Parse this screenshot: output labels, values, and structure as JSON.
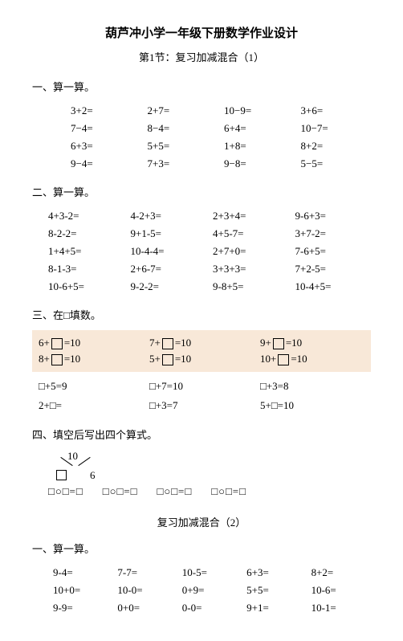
{
  "title": "葫芦冲小学一年级下册数学作业设计",
  "subtitle": "第1节：复习加减混合（1）",
  "s1": {
    "head": "一、算一算。",
    "rows": [
      [
        "3+2=",
        "2+7=",
        "10−9=",
        "3+6="
      ],
      [
        "7−4=",
        "8−4=",
        "6+4=",
        "10−7="
      ],
      [
        "6+3=",
        "5+5=",
        "1+8=",
        "8+2="
      ],
      [
        "9−4=",
        "7+3=",
        "9−8=",
        "5−5="
      ]
    ]
  },
  "s2": {
    "head": "二、算一算。",
    "rows": [
      [
        "4+3-2=",
        "4-2+3=",
        "2+3+4=",
        "9-6+3="
      ],
      [
        "8-2-2=",
        "9+1-5=",
        "4+5-7=",
        "3+7-2="
      ],
      [
        "1+4+5=",
        "10-4-4=",
        "2+7+0=",
        "7-6+5="
      ],
      [
        "8-1-3=",
        "2+6-7=",
        "3+3+3=",
        "7+2-5="
      ],
      [
        "10-6+5=",
        "9-2-2=",
        "9-8+5=",
        "10-4+5="
      ]
    ]
  },
  "s3": {
    "head": "三、在□填数。",
    "band": [
      {
        "a": "6+",
        "b": "=10",
        "c": "7+",
        "d": "=10",
        "e": "9+",
        "f": "=10"
      },
      {
        "a": "8+",
        "b": "=10",
        "c": "5+",
        "d": "=10",
        "e": "10+",
        "f": "=10"
      }
    ],
    "rows": [
      [
        "□+5=9",
        "□+7=10",
        "□+3=8"
      ],
      [
        "2+□=",
        "□+3=7",
        "5+□=10"
      ]
    ]
  },
  "s4": {
    "head": "四、填空后写出四个算式。",
    "ten": "10",
    "six": "6",
    "eqs": [
      "□○□=□",
      "□○□=□",
      "□○□=□",
      "□○□=□"
    ]
  },
  "subtitle2": "复习加减混合（2）",
  "s5": {
    "head": "一、算一算。",
    "rows": [
      [
        "9-4=",
        "7-7=",
        "10-5=",
        "6+3=",
        "8+2="
      ],
      [
        "10+0=",
        "10-0=",
        "0+9=",
        "5+5=",
        "10-6="
      ],
      [
        "9-9=",
        "0+0=",
        "0-0=",
        "9+1=",
        "10-1="
      ]
    ]
  }
}
